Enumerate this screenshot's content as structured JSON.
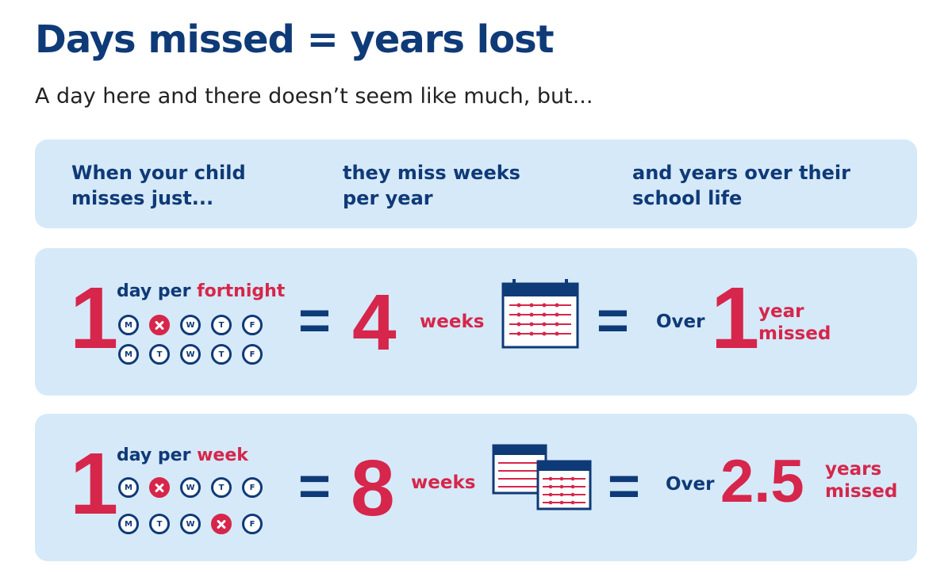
{
  "title": "Days missed = years lost",
  "subtitle": "A day here and there doesn’t seem like much, but...",
  "header": {
    "col1": "When your child\nmisses just...",
    "col2": "they miss weeks\nper year",
    "col3": "and years over their\nschool life"
  },
  "rows": [
    {
      "count": "1",
      "label_prefix": "day per ",
      "label_highlight": "fortnight",
      "week1": [
        {
          "letter": "M",
          "missed": false
        },
        {
          "letter": "T",
          "missed": true
        },
        {
          "letter": "W",
          "missed": false
        },
        {
          "letter": "T",
          "missed": false
        },
        {
          "letter": "F",
          "missed": false
        }
      ],
      "week2": [
        {
          "letter": "M",
          "missed": false
        },
        {
          "letter": "T",
          "missed": false
        },
        {
          "letter": "W",
          "missed": false
        },
        {
          "letter": "T",
          "missed": false
        },
        {
          "letter": "F",
          "missed": false
        }
      ],
      "equals1": "=",
      "weeks_number": "4",
      "weeks_label": "weeks",
      "calendar_count": 1,
      "equals2": "=",
      "over": "Over",
      "years_number": "1",
      "years_label_line1": "year",
      "years_label_line2": "missed"
    },
    {
      "count": "1",
      "label_prefix": "day per ",
      "label_highlight": "week",
      "week1": [
        {
          "letter": "M",
          "missed": false
        },
        {
          "letter": "T",
          "missed": true
        },
        {
          "letter": "W",
          "missed": false
        },
        {
          "letter": "T",
          "missed": false
        },
        {
          "letter": "F",
          "missed": false
        }
      ],
      "week2": [
        {
          "letter": "M",
          "missed": false
        },
        {
          "letter": "T",
          "missed": false
        },
        {
          "letter": "W",
          "missed": false
        },
        {
          "letter": "T",
          "missed": true
        },
        {
          "letter": "F",
          "missed": false
        }
      ],
      "equals1": "=",
      "weeks_number": "8",
      "weeks_label": "weeks",
      "calendar_count": 2,
      "equals2": "=",
      "over": "Over",
      "years_number": "2.5",
      "years_label_line1": "years",
      "years_label_line2": "missed"
    }
  ],
  "icons": {
    "calendar": "calendar-icon",
    "missed_day": "cross-icon"
  },
  "colors": {
    "navy": "#0f3a78",
    "red": "#d6264b",
    "panel": "#d6e9f8"
  }
}
